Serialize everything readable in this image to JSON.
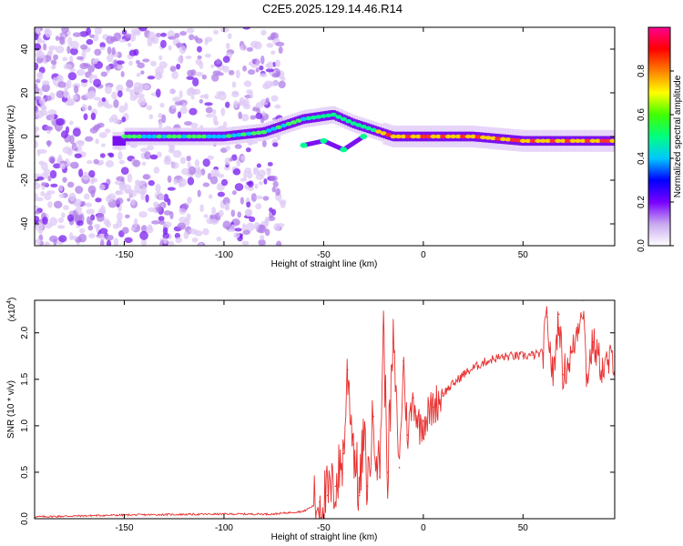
{
  "title": "C2E5.2025.129.14.46.R14",
  "chart_data": [
    {
      "type": "heatmap",
      "xlabel": "Height of straight line (km)",
      "ylabel": "Frequency (Hz)",
      "xlim": [
        -195,
        96
      ],
      "ylim": [
        -50,
        50
      ],
      "xticks": [
        -150,
        -100,
        -50,
        0,
        50
      ],
      "yticks": [
        -40,
        -20,
        0,
        20,
        40
      ],
      "colorbar": {
        "label": "Normalized spectral amplitude",
        "range": [
          0.0,
          1.0
        ],
        "ticks": [
          "0.0",
          "0.2",
          "0.4",
          "0.6",
          "0.8"
        ],
        "colors": [
          "#ffffff",
          "#c8a8f0",
          "#7700ff",
          "#0000ff",
          "#00c8ff",
          "#00ff80",
          "#40ff00",
          "#ffff00",
          "#ff8000",
          "#ff0000",
          "#ff0090"
        ]
      },
      "features": [
        {
          "segment": "noise",
          "x_range": [
            -195,
            -70
          ],
          "y_range": [
            -50,
            50
          ],
          "amplitude": 0.15
        },
        {
          "segment": "main_line",
          "points": [
            [
              -150,
              0
            ],
            [
              -125,
              0
            ],
            [
              -100,
              0
            ],
            [
              -80,
              2
            ],
            [
              -60,
              8
            ],
            [
              -45,
              10
            ],
            [
              -35,
              6
            ],
            [
              -25,
              3
            ],
            [
              -15,
              0
            ],
            [
              0,
              0
            ],
            [
              25,
              0
            ],
            [
              50,
              -2
            ],
            [
              96,
              -2
            ]
          ]
        },
        {
          "segment": "lower_branch",
          "points": [
            [
              -60,
              -4
            ],
            [
              -50,
              -2
            ],
            [
              -40,
              -6
            ],
            [
              -30,
              0
            ]
          ]
        }
      ]
    },
    {
      "type": "line",
      "xlabel": "Height of straight line (km)",
      "ylabel": "SNR (10 * v/v)",
      "scale_label": "(x10",
      "scale_exp": "4",
      "xlim": [
        -195,
        96
      ],
      "ylim": [
        0,
        2.35
      ],
      "xticks": [
        -150,
        -100,
        -50,
        0,
        50
      ],
      "yticks": [
        "0.0",
        "0.5",
        "1.0",
        "1.5",
        "2.0"
      ],
      "series": [
        {
          "color": "#e83030",
          "x": [
            -195,
            -150,
            -100,
            -75,
            -60,
            -52,
            -48,
            -44,
            -40,
            -38,
            -35,
            -32,
            -30,
            -28,
            -25,
            -22,
            -20,
            -18,
            -15,
            -12,
            -10,
            -8,
            -5,
            -2,
            0,
            5,
            10,
            15,
            20,
            25,
            30,
            35,
            40,
            45,
            50,
            55,
            60,
            62,
            65,
            68,
            70,
            75,
            80,
            82,
            85,
            90,
            96
          ],
          "y": [
            0.02,
            0.04,
            0.05,
            0.05,
            0.08,
            0.18,
            0.25,
            0.35,
            0.7,
            1.6,
            0.8,
            0.25,
            0.9,
            0.35,
            1.1,
            0.45,
            2.07,
            0.5,
            1.9,
            0.55,
            1.7,
            0.9,
            1.3,
            1.0,
            1.05,
            1.2,
            1.35,
            1.45,
            1.55,
            1.62,
            1.68,
            1.72,
            1.74,
            1.75,
            1.75,
            1.76,
            1.78,
            2.17,
            1.5,
            2.2,
            1.55,
            1.8,
            2.35,
            1.5,
            1.9,
            1.6,
            1.75
          ]
        }
      ]
    }
  ]
}
